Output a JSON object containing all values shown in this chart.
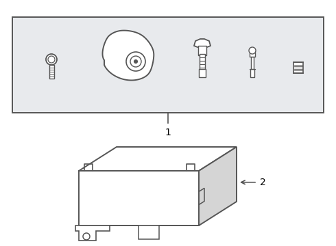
{
  "bg_color": "#ffffff",
  "line_color": "#555555",
  "box_bg": "#e8eaed",
  "label1": "1",
  "label2": "2",
  "figsize": [
    4.9,
    3.6
  ],
  "dpi": 100
}
